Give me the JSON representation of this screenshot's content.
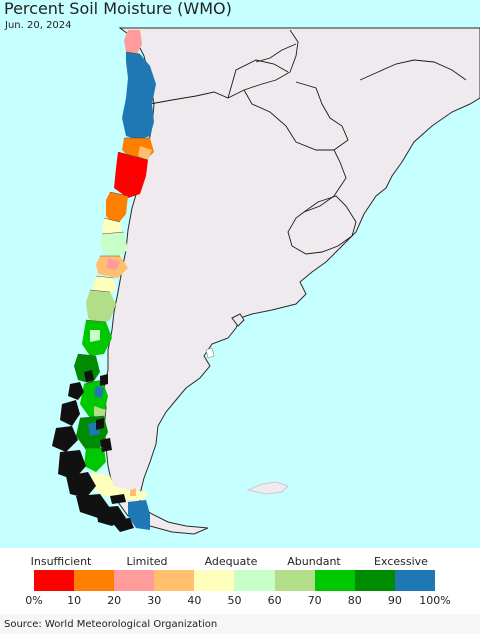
{
  "map": {
    "title": "Percent Soil Moisture (WMO)",
    "date": "Jun. 20, 2024",
    "colors": {
      "ocean": "#c6ffff",
      "land": "#efeaee",
      "border": "#1a1a1a",
      "lake": "#ffffff"
    }
  },
  "legend": {
    "categories": [
      {
        "label": "Insufficient"
      },
      {
        "label": "Limited"
      },
      {
        "label": "Adequate"
      },
      {
        "label": "Abundant"
      },
      {
        "label": "Excessive"
      }
    ],
    "bins": [
      {
        "range": "0-10",
        "color": "#ff0000"
      },
      {
        "range": "10-20",
        "color": "#ff7f00"
      },
      {
        "range": "20-30",
        "color": "#ff9b9b"
      },
      {
        "range": "30-40",
        "color": "#ffbf6f"
      },
      {
        "range": "40-50",
        "color": "#ffffbd"
      },
      {
        "range": "50-60",
        "color": "#c8ffc8"
      },
      {
        "range": "60-70",
        "color": "#b2de8a"
      },
      {
        "range": "70-80",
        "color": "#00c800"
      },
      {
        "range": "80-90",
        "color": "#008c00"
      },
      {
        "range": "90-100",
        "color": "#1f78b4"
      }
    ],
    "ticks": [
      "0%",
      "10",
      "20",
      "30",
      "40",
      "50",
      "60",
      "70",
      "80",
      "90",
      "100%"
    ]
  },
  "footer": {
    "source": "Source: World Meteorological Organization"
  }
}
